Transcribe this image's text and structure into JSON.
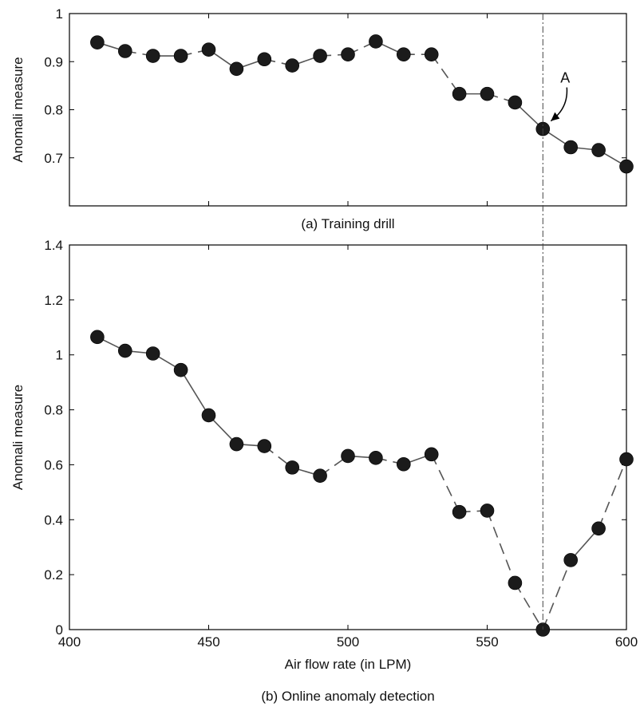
{
  "chart_data": [
    {
      "type": "line",
      "caption": "(a) Training drill",
      "xlabel": "",
      "ylabel": "Anomali measure",
      "xlim": [
        410,
        600
      ],
      "ylim": [
        0.6,
        1.0
      ],
      "yticks": [
        "0.7",
        "0.8",
        "0.9",
        "1"
      ],
      "ytick_values": [
        0.7,
        0.8,
        0.9,
        1.0
      ],
      "xticks_values": [
        450,
        500,
        550
      ],
      "x": [
        410,
        420,
        430,
        440,
        450,
        460,
        470,
        480,
        490,
        500,
        510,
        520,
        530,
        540,
        550,
        560,
        570,
        580,
        590,
        600
      ],
      "y": [
        0.94,
        0.922,
        0.912,
        0.912,
        0.925,
        0.885,
        0.905,
        0.892,
        0.912,
        0.915,
        0.942,
        0.915,
        0.915,
        0.833,
        0.833,
        0.815,
        0.76,
        0.722,
        0.716,
        0.682
      ],
      "annotation": {
        "text": "A",
        "x": 570,
        "y": 0.76
      },
      "grid": false,
      "legend": "none"
    },
    {
      "type": "line",
      "caption": "(b) Online anomaly detection",
      "xlabel": "Air flow rate (in LPM)",
      "ylabel": "Anomali measure",
      "xlim": [
        400,
        600
      ],
      "ylim": [
        0,
        1.4
      ],
      "xticks": [
        "400",
        "450",
        "500",
        "550",
        "600"
      ],
      "xtick_values": [
        400,
        450,
        500,
        550,
        600
      ],
      "yticks": [
        "0",
        "0.2",
        "0.4",
        "0.6",
        "0.8",
        "1",
        "1.2",
        "1.4"
      ],
      "ytick_values": [
        0,
        0.2,
        0.4,
        0.6,
        0.8,
        1.0,
        1.2,
        1.4
      ],
      "x": [
        410,
        420,
        430,
        440,
        450,
        460,
        470,
        480,
        490,
        500,
        510,
        520,
        530,
        540,
        550,
        560,
        570,
        580,
        590,
        600
      ],
      "y": [
        1.065,
        1.015,
        1.005,
        0.945,
        0.78,
        0.675,
        0.668,
        0.59,
        0.56,
        0.632,
        0.625,
        0.602,
        0.638,
        0.428,
        0.433,
        0.17,
        0.0,
        0.253,
        0.368,
        0.62
      ],
      "grid": false,
      "legend": "none"
    }
  ],
  "event_line_x": 570
}
